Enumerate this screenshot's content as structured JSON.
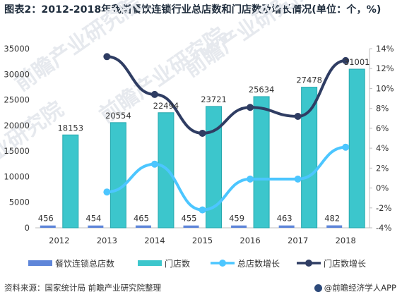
{
  "header": {
    "title": "图表2：2012-2018年我国餐饮连锁行业总店数和门店数及增长情况(单位：个，%)"
  },
  "footer": {
    "source": "资料来源：国家统计局 前瞻产业研究院整理",
    "brand": "@前瞻经济学人APP"
  },
  "watermark": {
    "text": "前瞻产业研究院"
  },
  "colors": {
    "bar_total": "#5f86d9",
    "bar_stores": "#3cc6cc",
    "line_total_growth": "#4cc6ff",
    "line_store_growth": "#2f3d63",
    "axis": "#bfbfbf"
  },
  "chart_data": {
    "type": "bar",
    "categories": [
      "2012",
      "2013",
      "2014",
      "2015",
      "2016",
      "2017",
      "2018"
    ],
    "left_axis": {
      "min": 0,
      "max": 35000,
      "step": 5000
    },
    "right_axis": {
      "min": -4,
      "max": 14,
      "step": 2,
      "unit": "%"
    },
    "series": [
      {
        "name": "餐饮连锁总店数",
        "kind": "bar",
        "axis": "left",
        "values": [
          456,
          454,
          465,
          455,
          459,
          463,
          482
        ],
        "labels": true
      },
      {
        "name": "门店数",
        "kind": "bar",
        "axis": "left",
        "values": [
          18153,
          20554,
          22494,
          23721,
          25634,
          27478,
          31001
        ],
        "labels": true
      },
      {
        "name": "总店数增长",
        "kind": "line",
        "axis": "right",
        "values": [
          null,
          -0.4,
          2.4,
          -2.2,
          0.9,
          0.9,
          4.1
        ]
      },
      {
        "name": "门店数增长",
        "kind": "line",
        "axis": "right",
        "values": [
          null,
          13.2,
          9.4,
          5.5,
          8.1,
          7.2,
          12.8
        ]
      }
    ],
    "legend_position": "bottom",
    "grid": false
  }
}
